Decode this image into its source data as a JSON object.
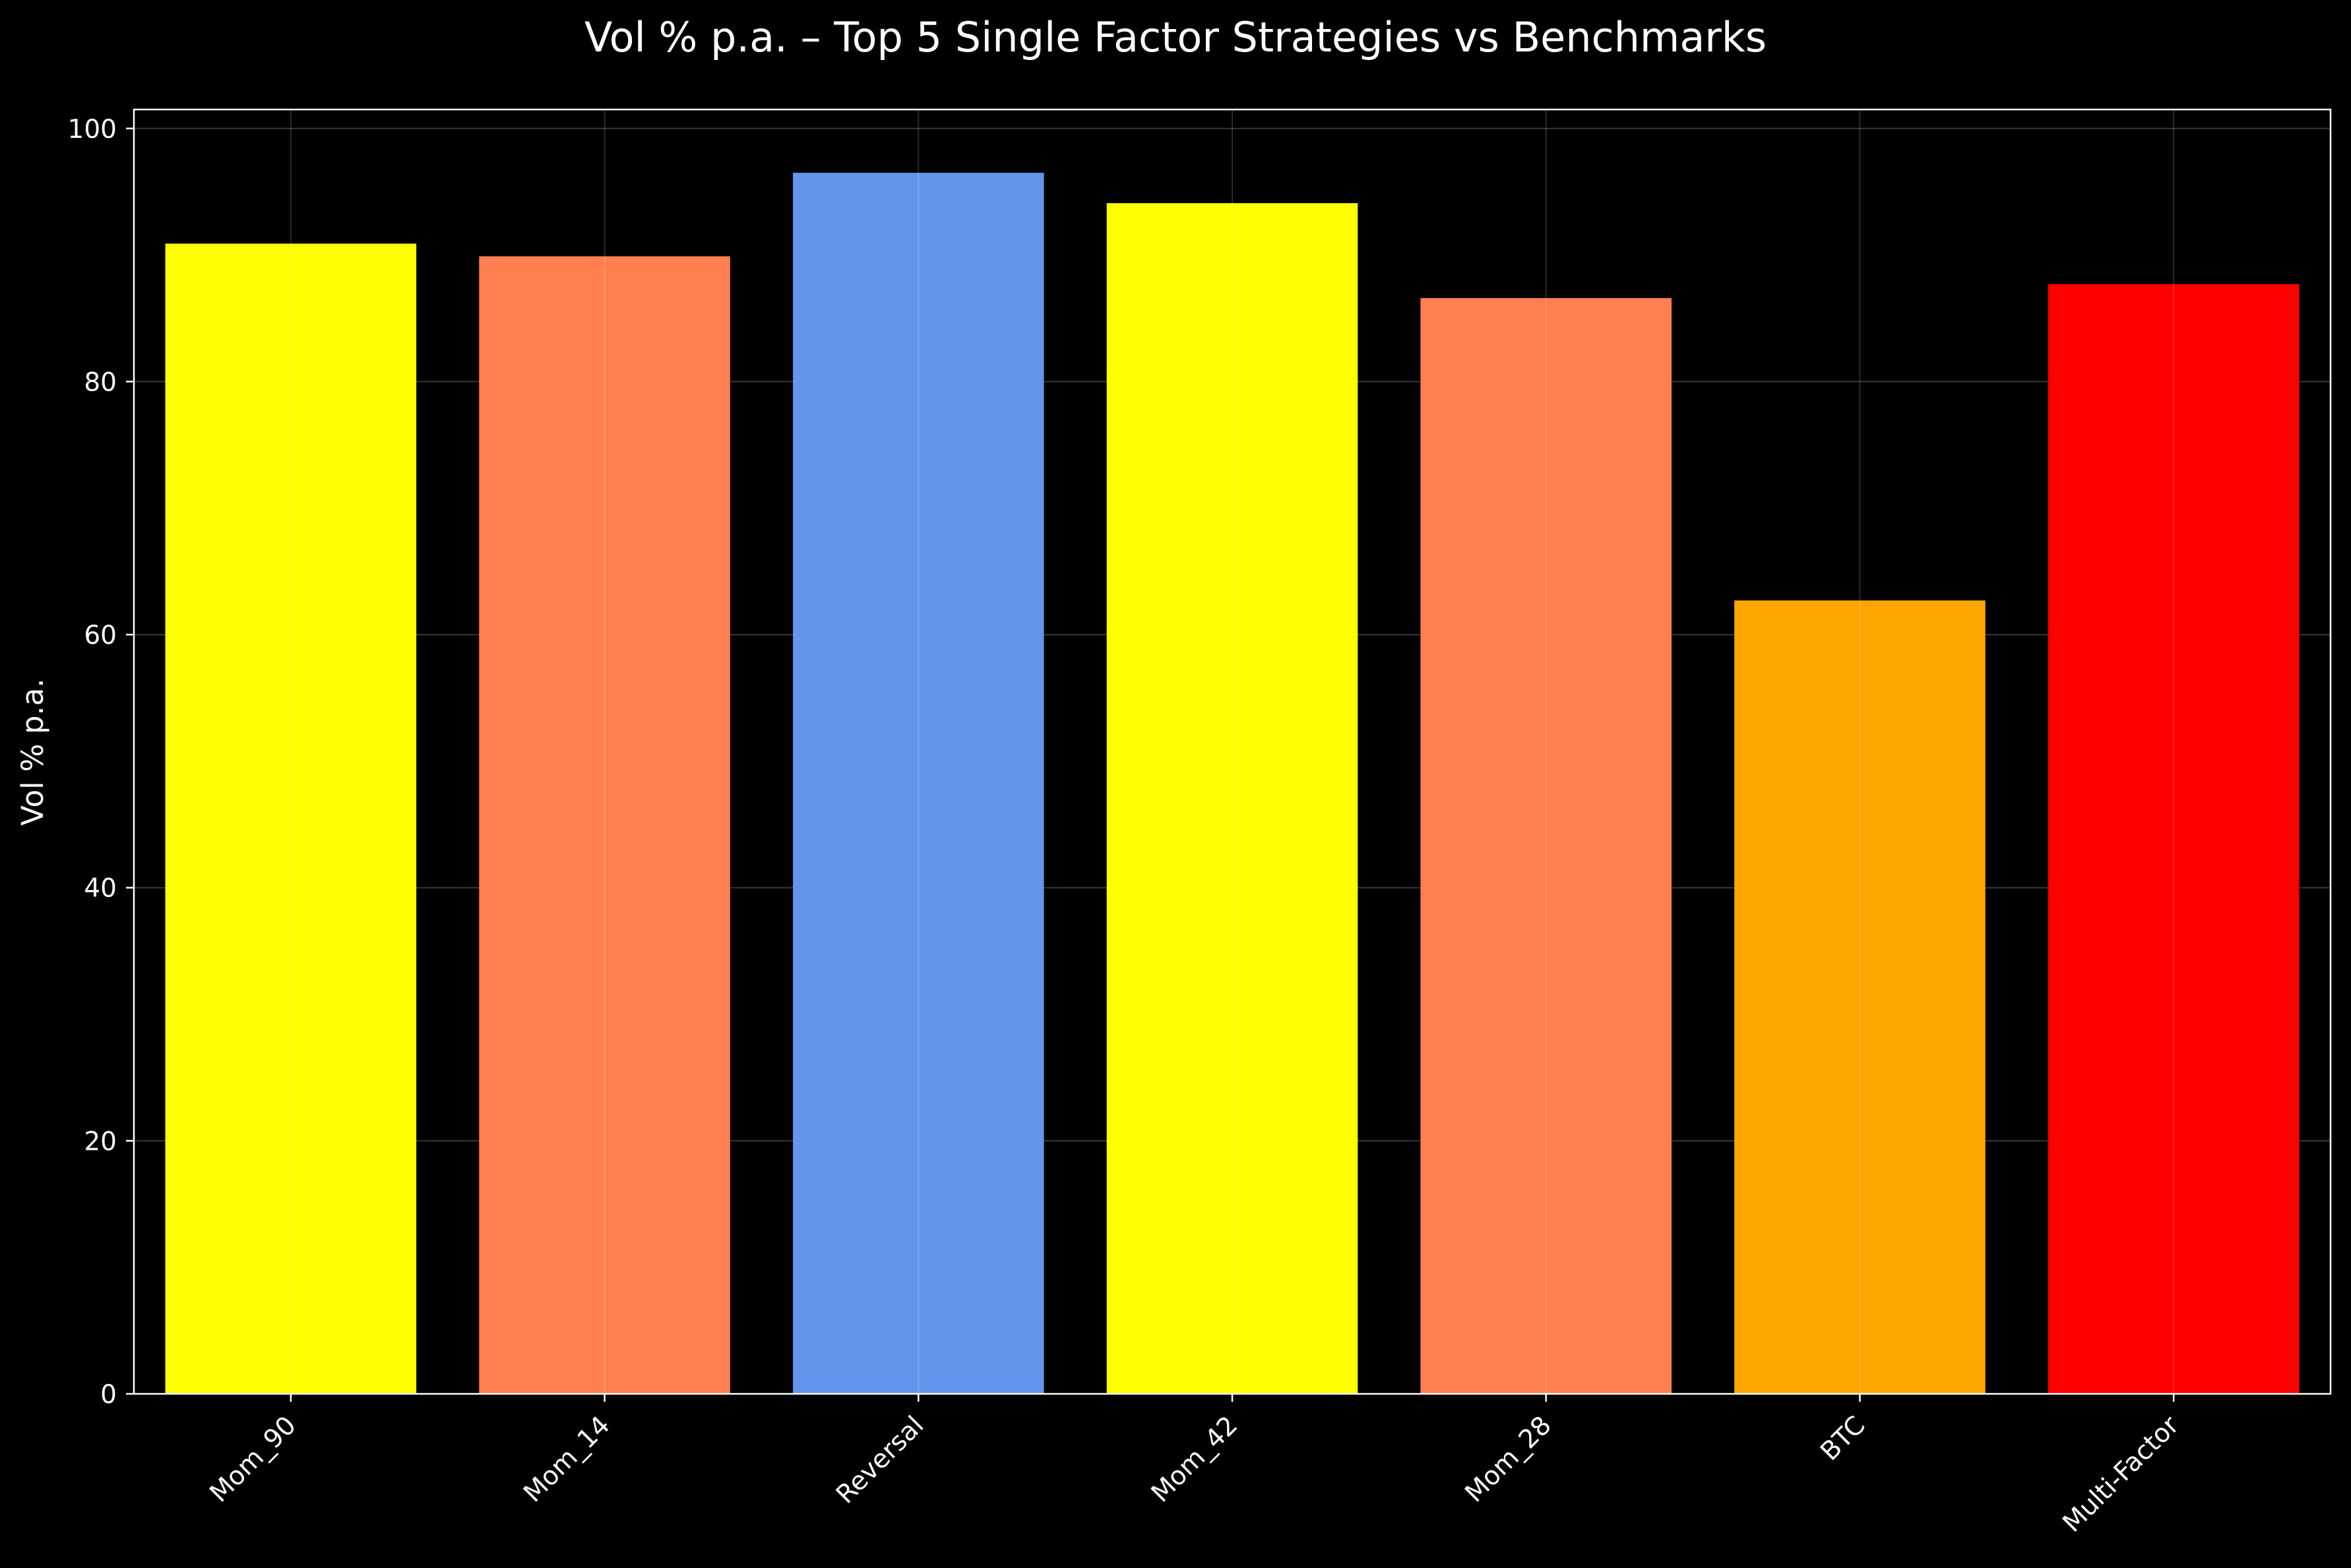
{
  "chart_data": {
    "type": "bar",
    "title": "Vol % p.a. – Top 5 Single Factor Strategies vs Benchmarks",
    "xlabel": "",
    "ylabel": "Vol % p.a.",
    "categories": [
      "Mom_90",
      "Mom_14",
      "Reversal",
      "Mom_42",
      "Mom_28",
      "BTC",
      "Multi-Factor"
    ],
    "values": [
      90.9,
      89.9,
      96.5,
      94.1,
      86.6,
      62.7,
      87.7
    ],
    "colors": [
      "#ffff00",
      "#ff7f50",
      "#6495ed",
      "#ffff00",
      "#ff7f50",
      "#ffa500",
      "#ff0000"
    ],
    "ylim": [
      0,
      101.5
    ],
    "yticks": [
      "0",
      "20",
      "40",
      "60",
      "80",
      "100"
    ],
    "grid": true,
    "legend": "none",
    "background": "#000000",
    "text_color": "#ffffff"
  }
}
